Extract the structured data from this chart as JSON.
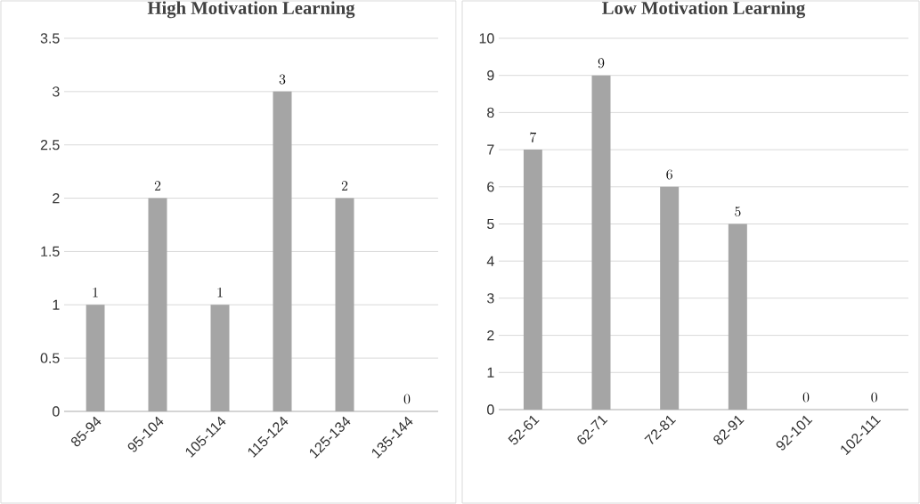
{
  "chart_data": [
    {
      "type": "bar",
      "title": "High Motivation Learning",
      "categories": [
        "85-94",
        "95-104",
        "105-114",
        "115-124",
        "125-134",
        "135-144"
      ],
      "values": [
        1,
        2,
        1,
        3,
        2,
        0
      ],
      "color": "#a5a5a5",
      "ylim": [
        0,
        3.5
      ],
      "yticks": [
        0,
        0.5,
        1,
        1.5,
        2,
        2.5,
        3,
        3.5
      ],
      "grid": "y",
      "data_labels": true
    },
    {
      "type": "bar",
      "title": "Low Motivation Learning",
      "categories": [
        "52-61",
        "62-71",
        "72-81",
        "82-91",
        "92-101",
        "102-111"
      ],
      "values": [
        7,
        9,
        6,
        5,
        0,
        0
      ],
      "color": "#a5a5a5",
      "ylim": [
        0,
        10
      ],
      "yticks": [
        0,
        1,
        2,
        3,
        4,
        5,
        6,
        7,
        8,
        9,
        10
      ],
      "grid": "y",
      "data_labels": true
    }
  ]
}
